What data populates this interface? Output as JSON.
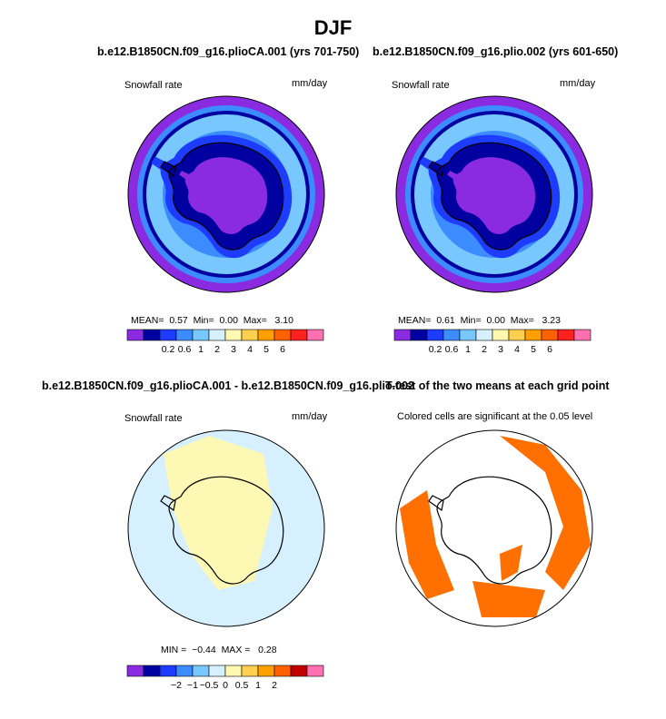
{
  "main_title": "DJF",
  "chart_data": [
    {
      "type": "heatmap",
      "projection": "south-polar-stereographic",
      "title": "b.e12.B1850CN.f09_g16.plioCA.001 (yrs 701-750)",
      "left_label": "Snowfall rate",
      "right_label": "mm/day",
      "stats": {
        "mean_label": "MEAN=",
        "mean": "0.57",
        "min_label": "Min=",
        "min": "0.00",
        "max_label": "Max=",
        "max": "3.10"
      },
      "colorbar_ticks": [
        "0.2",
        "0.6",
        "1",
        "2",
        "3",
        "4",
        "5",
        "6"
      ],
      "colorbar_colors": [
        "#8a2be2",
        "#0000a0",
        "#1e3cff",
        "#3c8cff",
        "#78c8ff",
        "#d6f0ff",
        "#fff8b0",
        "#ffd050",
        "#ffa000",
        "#ff6000",
        "#ff2020",
        "#ff70b0"
      ]
    },
    {
      "type": "heatmap",
      "projection": "south-polar-stereographic",
      "title": "b.e12.B1850CN.f09_g16.plio.002 (yrs 601-650)",
      "left_label": "Snowfall rate",
      "right_label": "mm/day",
      "stats": {
        "mean_label": "MEAN=",
        "mean": "0.61",
        "min_label": "Min=",
        "min": "0.00",
        "max_label": "Max=",
        "max": "3.23"
      },
      "colorbar_ticks": [
        "0.2",
        "0.6",
        "1",
        "2",
        "3",
        "4",
        "5",
        "6"
      ],
      "colorbar_colors": [
        "#8a2be2",
        "#0000a0",
        "#1e3cff",
        "#3c8cff",
        "#78c8ff",
        "#d6f0ff",
        "#fff8b0",
        "#ffd050",
        "#ffa000",
        "#ff6000",
        "#ff2020",
        "#ff70b0"
      ]
    },
    {
      "type": "heatmap",
      "projection": "south-polar-stereographic",
      "title": "b.e12.B1850CN.f09_g16.plioCA.001 - b.e12.B1850CN.f09_g16.plio.002",
      "left_label": "Snowfall rate",
      "right_label": "mm/day",
      "stats": {
        "min_label": "MIN =",
        "min": "−0.44",
        "max_label": "MAX =",
        "max": "0.28"
      },
      "colorbar_ticks": [
        "−2",
        "−1",
        "−0.5",
        "0",
        "0.5",
        "1",
        "2"
      ],
      "colorbar_colors": [
        "#8a2be2",
        "#0000a0",
        "#1e3cff",
        "#3c8cff",
        "#78c8ff",
        "#d6f0ff",
        "#fff8b0",
        "#ffd050",
        "#ffa000",
        "#ff6000",
        "#c00000",
        "#ff70b0"
      ]
    },
    {
      "type": "heatmap",
      "projection": "south-polar-stereographic",
      "title": "T-test of the two means at each grid point",
      "left_label": "Colored cells are significant at the 0.05 level",
      "significance_color": "#ff7000"
    }
  ]
}
